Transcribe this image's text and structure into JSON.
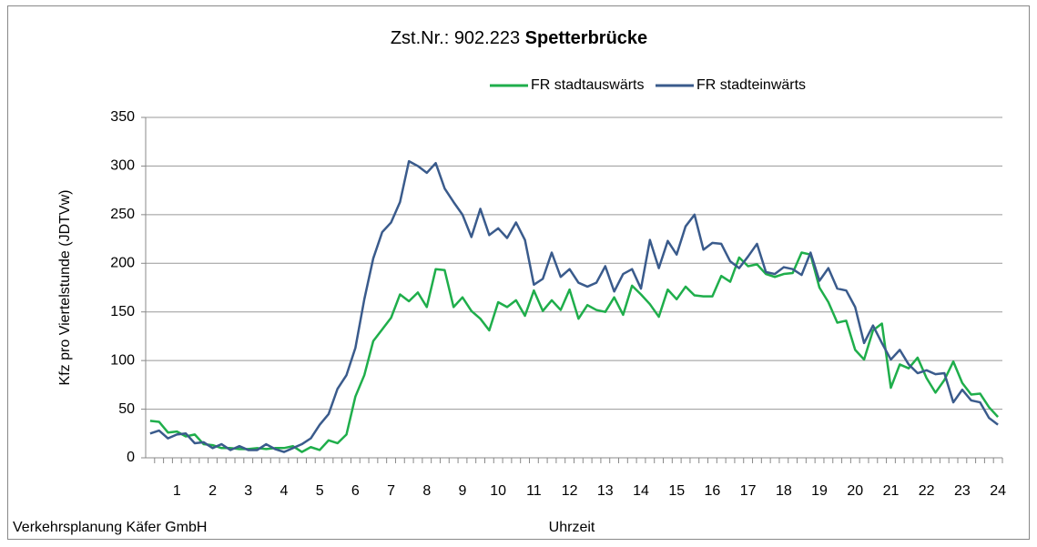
{
  "chart_data": {
    "type": "line",
    "title": "Zst.Nr.: 902.223",
    "title_bold": "Spetterbrücke",
    "y_label": "Kfz pro Viertelstunde (JDTVw)",
    "x_label": "Uhrzeit",
    "footer": "Verkehrsplanung Käfer GmbH",
    "categories": [
      null,
      null,
      null,
      "1",
      null,
      null,
      null,
      "2",
      null,
      null,
      null,
      "3",
      null,
      null,
      null,
      "4",
      null,
      null,
      null,
      "5",
      null,
      null,
      null,
      "6",
      null,
      null,
      null,
      "7",
      null,
      null,
      null,
      "8",
      null,
      null,
      null,
      "9",
      null,
      null,
      null,
      "10",
      null,
      null,
      null,
      "11",
      null,
      null,
      null,
      "12",
      null,
      null,
      null,
      "13",
      null,
      null,
      null,
      "14",
      null,
      null,
      null,
      "15",
      null,
      null,
      null,
      "16",
      null,
      null,
      null,
      "17",
      null,
      null,
      null,
      "18",
      null,
      null,
      null,
      "19",
      null,
      null,
      null,
      "20",
      null,
      null,
      null,
      "21",
      null,
      null,
      null,
      "22",
      null,
      null,
      null,
      "23",
      null,
      null,
      null,
      "24"
    ],
    "series": [
      {
        "name": "FR stadtauswärts",
        "color": "#1fae4b",
        "values": [
          38,
          37,
          26,
          27,
          22,
          24,
          14,
          13,
          10,
          10,
          9,
          9,
          10,
          9,
          10,
          10,
          12,
          6,
          11,
          8,
          18,
          15,
          24,
          63,
          85,
          120,
          132,
          144,
          168,
          161,
          170,
          155,
          194,
          193,
          155,
          165,
          151,
          143,
          131,
          160,
          155,
          162,
          146,
          172,
          151,
          162,
          152,
          173,
          143,
          157,
          152,
          150,
          165,
          147,
          177,
          168,
          158,
          145,
          173,
          163,
          176,
          167,
          166,
          166,
          187,
          181,
          206,
          197,
          199,
          189,
          186,
          189,
          190,
          211,
          209,
          175,
          160,
          139,
          141,
          111,
          101,
          131,
          138,
          72,
          96,
          92,
          103,
          82,
          67,
          80,
          99,
          77,
          65,
          66,
          52,
          42
        ]
      },
      {
        "name": "FR stadteinwärts",
        "color": "#3a5b8c",
        "values": [
          25,
          28,
          20,
          24,
          25,
          15,
          16,
          10,
          14,
          8,
          12,
          8,
          8,
          14,
          9,
          6,
          10,
          14,
          20,
          34,
          45,
          71,
          85,
          113,
          163,
          205,
          232,
          242,
          263,
          305,
          300,
          293,
          303,
          277,
          263,
          250,
          227,
          256,
          229,
          236,
          226,
          242,
          224,
          178,
          184,
          211,
          186,
          194,
          180,
          176,
          180,
          197,
          171,
          189,
          194,
          174,
          224,
          195,
          223,
          209,
          238,
          250,
          214,
          221,
          220,
          202,
          195,
          207,
          220,
          191,
          189,
          196,
          194,
          188,
          211,
          182,
          195,
          174,
          172,
          155,
          118,
          136,
          118,
          101,
          111,
          96,
          87,
          90,
          86,
          87,
          57,
          70,
          59,
          57,
          41,
          34
        ]
      }
    ],
    "ylim": [
      0,
      350
    ],
    "yticks": [
      0,
      50,
      100,
      150,
      200,
      250,
      300,
      350
    ],
    "grid": true
  }
}
